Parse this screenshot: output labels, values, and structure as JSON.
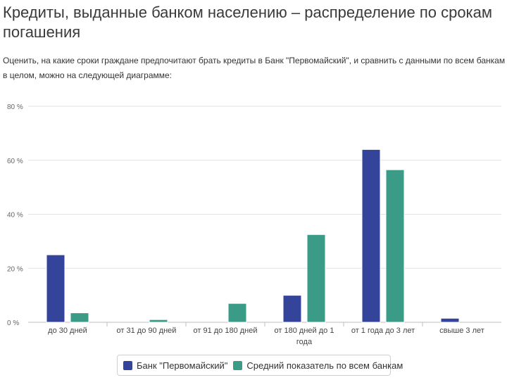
{
  "page": {
    "title": "Кредиты, выданные банком населению – распределение по срокам погашения",
    "description": "Оценить, на какие сроки граждане предпочитают брать кредиты в Банк \"Первомайский\", и сравнить с данными по всем банкам в целом, можно на следующей диаграмме:"
  },
  "colors": {
    "series1": "#34449a",
    "series2": "#3a9c86",
    "grid": "#e2e2e2",
    "axis": "#bdbdbd"
  },
  "chart_data": {
    "type": "bar",
    "categories": [
      [
        "до 30 дней"
      ],
      [
        "от 31 до 90 дней"
      ],
      [
        "от 91 до 180 дней"
      ],
      [
        "от 180 дней до 1",
        "года"
      ],
      [
        "от 1 года до 3 лет"
      ],
      [
        "свыше 3 лет"
      ]
    ],
    "series": [
      {
        "name": "Банк \"Первомайский\"",
        "values": [
          25,
          0,
          0,
          10,
          64,
          1.5
        ]
      },
      {
        "name": "Средний показатель по всем банкам",
        "values": [
          3.5,
          1,
          7,
          32.5,
          56.5,
          0
        ]
      }
    ],
    "ylim": [
      0,
      80
    ],
    "yticks": [
      0,
      20,
      40,
      60,
      80
    ],
    "ytick_labels": [
      "0 %",
      "20 %",
      "40 %",
      "60 %",
      "80 %"
    ],
    "grid": true,
    "legend_position": "bottom-center"
  }
}
